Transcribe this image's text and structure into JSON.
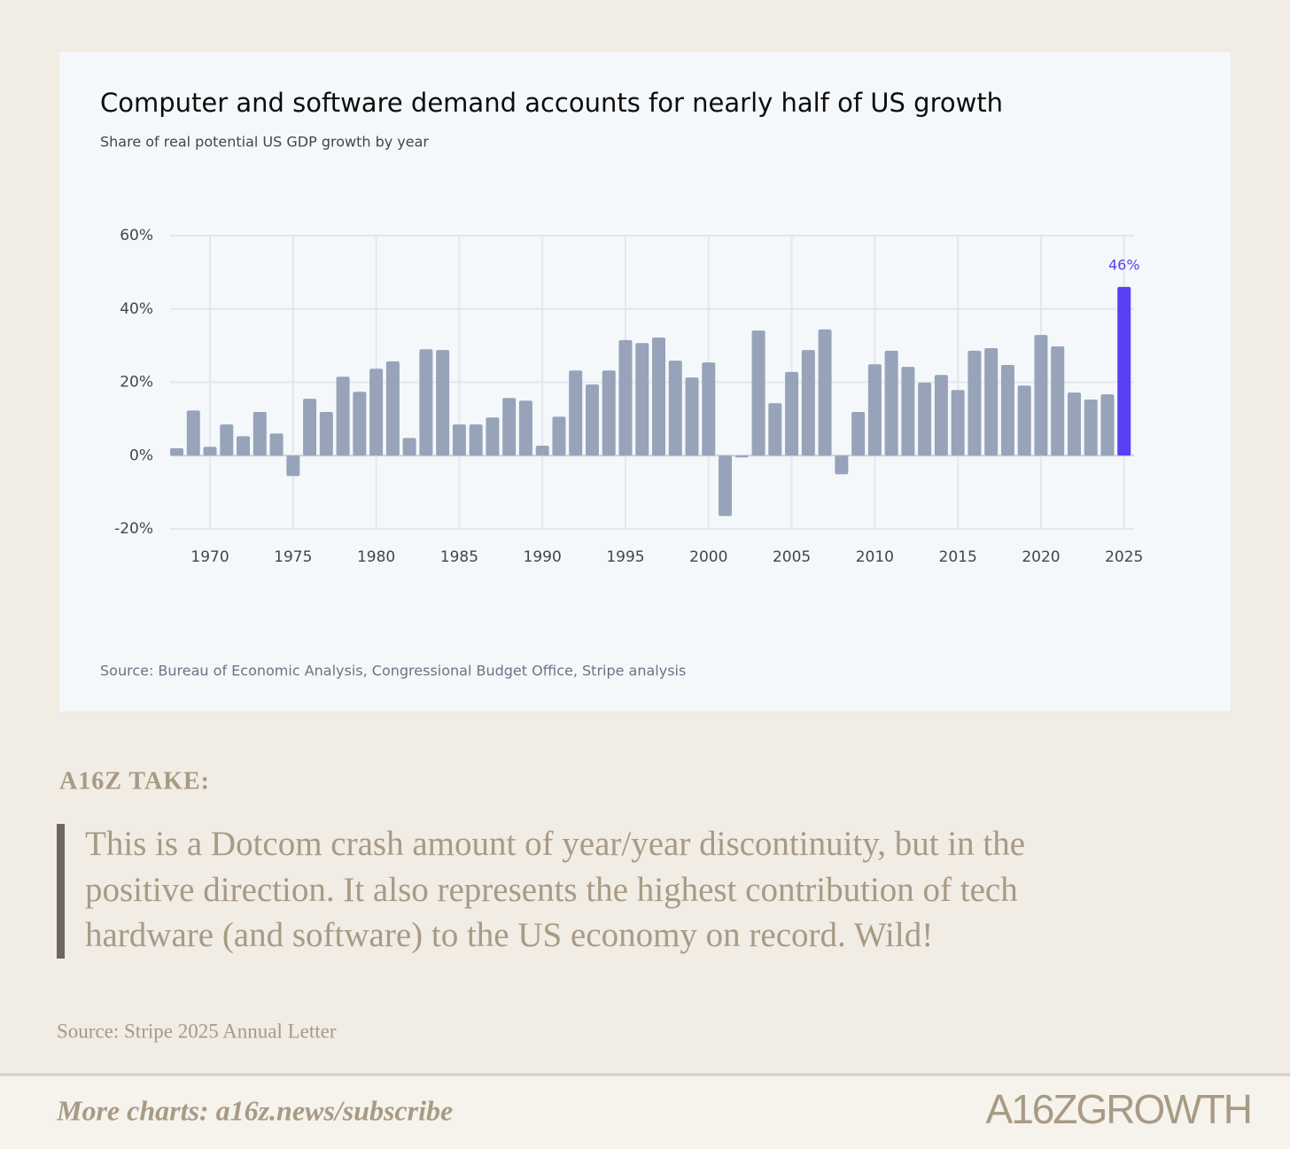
{
  "chart_data": {
    "type": "bar",
    "title": "Computer and software demand accounts for nearly half of US growth",
    "subtitle": "Share of real potential US GDP growth by year",
    "source": "Source: Bureau of Economic Analysis, Congressional Budget Office, Stripe analysis",
    "x": [
      1968,
      1969,
      1970,
      1971,
      1972,
      1973,
      1974,
      1975,
      1976,
      1977,
      1978,
      1979,
      1980,
      1981,
      1982,
      1983,
      1984,
      1985,
      1986,
      1987,
      1988,
      1989,
      1990,
      1991,
      1992,
      1993,
      1994,
      1995,
      1996,
      1997,
      1998,
      1999,
      2000,
      2001,
      2002,
      2003,
      2004,
      2005,
      2006,
      2007,
      2008,
      2009,
      2010,
      2011,
      2012,
      2013,
      2014,
      2015,
      2016,
      2017,
      2018,
      2019,
      2020,
      2021,
      2022,
      2023,
      2024,
      2025
    ],
    "values": [
      2,
      12.3,
      2.4,
      8.5,
      5.3,
      11.9,
      6,
      -5.6,
      15.5,
      11.9,
      21.5,
      17.4,
      23.7,
      25.7,
      4.8,
      29,
      28.8,
      8.5,
      8.5,
      10.4,
      15.7,
      15,
      2.7,
      10.6,
      23.2,
      19.4,
      23.2,
      31.5,
      30.7,
      32.2,
      25.9,
      21.3,
      25.4,
      -16.5,
      -0.5,
      34.1,
      14.3,
      22.8,
      28.8,
      34.4,
      -5.1,
      11.9,
      24.9,
      28.6,
      24.2,
      19.9,
      22,
      17.9,
      28.6,
      29.3,
      24.7,
      19.1,
      32.9,
      29.8,
      17.2,
      15.3,
      16.7,
      46
    ],
    "value_labels": [
      null,
      null,
      null,
      null,
      null,
      null,
      null,
      null,
      null,
      null,
      null,
      null,
      null,
      null,
      null,
      null,
      null,
      null,
      null,
      null,
      null,
      null,
      null,
      null,
      null,
      null,
      null,
      null,
      null,
      null,
      null,
      null,
      null,
      null,
      null,
      null,
      null,
      null,
      null,
      null,
      null,
      null,
      null,
      null,
      null,
      null,
      null,
      null,
      null,
      null,
      null,
      null,
      null,
      null,
      null,
      null,
      null,
      "46%"
    ],
    "color": "#97a3b9",
    "highlight": {
      "x": 2025,
      "color": "#5a3ff5"
    },
    "xlim": [
      1967.6,
      2025.6
    ],
    "xticks": [
      1970,
      1975,
      1980,
      1985,
      1990,
      1995,
      2000,
      2005,
      2010,
      2015,
      2020,
      2025
    ],
    "ylim": [
      -20,
      60
    ],
    "yticks": [
      {
        "value": -20,
        "label": "-20%"
      },
      {
        "value": 0,
        "label": "0%"
      },
      {
        "value": 20,
        "label": "20%"
      },
      {
        "value": 40,
        "label": "40%"
      },
      {
        "value": 60,
        "label": "60%"
      }
    ],
    "grid": true
  },
  "take": {
    "heading": "A16Z TAKE:",
    "quote": [
      "This is a Dotcom crash amount of year/year discontinuity, but in the",
      "positive direction. It also represents the highest contribution of tech",
      "hardware (and software) to the US economy on record. Wild!"
    ]
  },
  "source": "Source: Stripe 2025 Annual Letter",
  "footer": {
    "cta": "More charts: a16z.news/subscribe",
    "logo": "A16ZGROWTH"
  }
}
